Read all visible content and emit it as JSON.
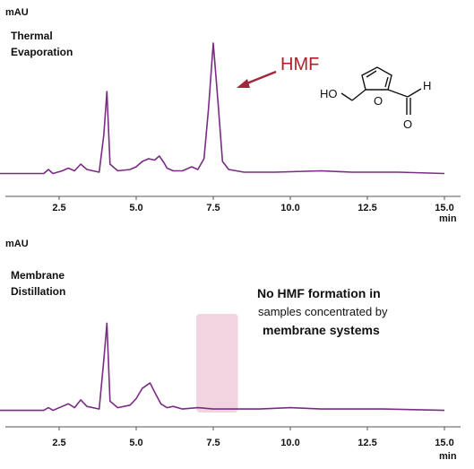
{
  "chart_data": [
    {
      "type": "line",
      "title": "Thermal Evaporation",
      "title_lines": [
        "Thermal",
        "Evaporation"
      ],
      "ylabel": "mAU",
      "xlabel": "min",
      "xlim": [
        0,
        15.3
      ],
      "xticks": [
        "2.5",
        "5.0",
        "7.5",
        "10.0",
        "12.5",
        "15.0"
      ],
      "series": [
        {
          "color": "#7b2a86",
          "x": [
            0.0,
            2.0,
            2.15,
            2.3,
            2.6,
            2.8,
            3.0,
            3.2,
            3.4,
            3.8,
            3.95,
            4.05,
            4.15,
            4.4,
            4.8,
            5.0,
            5.2,
            5.4,
            5.6,
            5.75,
            5.9,
            6.0,
            6.2,
            6.5,
            6.8,
            7.0,
            7.2,
            7.35,
            7.5,
            7.65,
            7.8,
            8.0,
            8.5,
            9.5,
            11.0,
            12.0,
            13.5,
            15.0
          ],
          "y": [
            1,
            1,
            4,
            1,
            3,
            5,
            3,
            8,
            4,
            2,
            30,
            62,
            8,
            3,
            4,
            6,
            10,
            12,
            11,
            14,
            9,
            5,
            3,
            3,
            6,
            4,
            12,
            50,
            98,
            55,
            10,
            4,
            2,
            2,
            3,
            2,
            2,
            1
          ]
        }
      ],
      "annotations": [
        "HMF"
      ],
      "structure_labels": [
        "HO",
        "O",
        "H",
        "O"
      ]
    },
    {
      "type": "line",
      "title": "Membrane Distillation",
      "title_lines": [
        "Membrane",
        "Distillation"
      ],
      "ylabel": "mAU",
      "xlabel": "min",
      "xlim": [
        0,
        15.3
      ],
      "xticks": [
        "2.5",
        "5.0",
        "7.5",
        "10.0",
        "12.5",
        "15.0"
      ],
      "series": [
        {
          "color": "#7b2a86",
          "x": [
            0.0,
            2.0,
            2.15,
            2.3,
            2.6,
            2.8,
            3.0,
            3.2,
            3.4,
            3.8,
            3.95,
            4.05,
            4.15,
            4.4,
            4.8,
            5.0,
            5.2,
            5.45,
            5.6,
            5.8,
            6.0,
            6.2,
            6.5,
            7.0,
            7.5,
            8.0,
            9.0,
            10.0,
            11.0,
            12.0,
            13.0,
            15.0
          ],
          "y": [
            1,
            1,
            3,
            1,
            4,
            6,
            3,
            9,
            4,
            2,
            40,
            68,
            8,
            3,
            5,
            10,
            18,
            22,
            15,
            6,
            3,
            4,
            2,
            3,
            2,
            2,
            2,
            3,
            2,
            2,
            2,
            1
          ]
        }
      ],
      "highlight_region": [
        6.95,
        8.3
      ],
      "note": {
        "line1": "No HMF formation in",
        "line2": "samples concentrated by",
        "line3": "membrane systems"
      }
    }
  ]
}
